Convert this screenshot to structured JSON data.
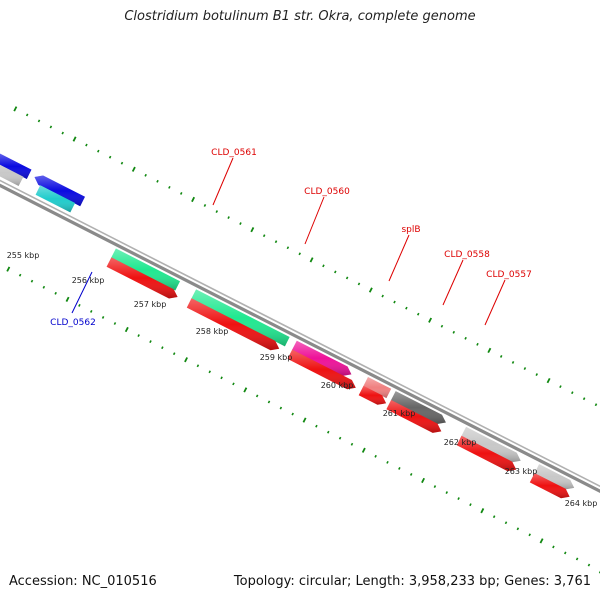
{
  "title": "Clostridium botulinum B1 str. Okra, complete genome",
  "footer": {
    "accession": "Accession: NC_010516",
    "topology": "Topology: circular; Length: 3,958,233 bp; Genes: 3,761"
  },
  "ruler": {
    "ticks": [
      {
        "kbp": 255,
        "label": "255 kbp"
      },
      {
        "kbp": 256,
        "label": "256 kbp"
      },
      {
        "kbp": 257,
        "label": "257 kbp"
      },
      {
        "kbp": 258,
        "label": "258 kbp"
      },
      {
        "kbp": 259,
        "label": "259 kbp"
      },
      {
        "kbp": 260,
        "label": "260 kbp"
      },
      {
        "kbp": 261,
        "label": "261 kbp"
      },
      {
        "kbp": 262,
        "label": "262 kbp"
      },
      {
        "kbp": 263,
        "label": "263 kbp"
      },
      {
        "kbp": 264,
        "label": "264 kbp"
      }
    ]
  },
  "colors": {
    "backbone": "#999999",
    "blue_gene": "#0a0ae0",
    "cyan_gene": "#20cccc",
    "green_gene": "#20e890",
    "red_gene": "#ee1111",
    "magenta_gene": "#ee1199",
    "salmon_gene": "#f08080",
    "darkgray_gene": "#666666",
    "lightgray_gene": "#c8c8c8",
    "dots": "#118811",
    "label_red": "#dd0000",
    "label_blue": "#0000cc"
  },
  "gene_labels": [
    {
      "name": "CLD_0562",
      "color": "label_blue"
    },
    {
      "name": "CLD_0561",
      "color": "label_red"
    },
    {
      "name": "CLD_0560",
      "color": "label_red"
    },
    {
      "name": "splB",
      "color": "label_red"
    },
    {
      "name": "CLD_0558",
      "color": "label_red"
    },
    {
      "name": "CLD_0557",
      "color": "label_red"
    }
  ]
}
